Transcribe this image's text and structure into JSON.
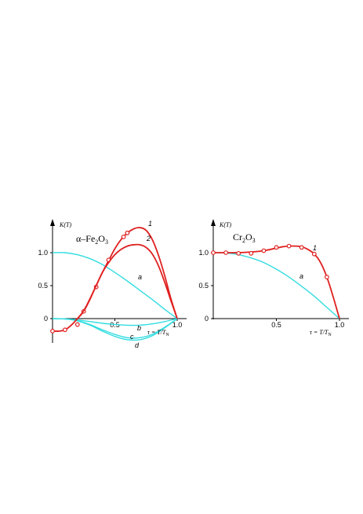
{
  "chart_data": [
    {
      "type": "line",
      "title_main": "α–Fe",
      "title_sub1": "2",
      "title_mid": "O",
      "title_sub2": "3",
      "ylabel": "K(T)",
      "xlabel_main": "τ = T/T",
      "xlabel_sub": "N",
      "xlim": [
        0,
        1.0
      ],
      "ylim": [
        -0.35,
        1.4
      ],
      "xticks": [
        {
          "value": 0.5,
          "label": "0.5"
        },
        {
          "value": 1.0,
          "label": "1.0"
        }
      ],
      "yticks": [
        {
          "value": 0,
          "label": "0"
        },
        {
          "value": 0.5,
          "label": "0.5"
        },
        {
          "value": 1.0,
          "label": "1.0"
        }
      ],
      "colors": {
        "experiment": "#e02020",
        "theory": "#33dde0"
      },
      "series": [
        {
          "name": "1",
          "color": "#e02020",
          "markers": true,
          "x": [
            0.0,
            0.05,
            0.1,
            0.15,
            0.2,
            0.25,
            0.3,
            0.35,
            0.4,
            0.45,
            0.5,
            0.55,
            0.6,
            0.65,
            0.7,
            0.75,
            0.8,
            0.85,
            0.9,
            0.95,
            1.0
          ],
          "y": [
            -0.19,
            -0.19,
            -0.17,
            -0.1,
            0.0,
            0.11,
            0.29,
            0.5,
            0.7,
            0.88,
            1.06,
            1.2,
            1.3,
            1.36,
            1.38,
            1.34,
            1.2,
            0.96,
            0.65,
            0.3,
            0.0
          ],
          "marker_x": [
            0.0,
            0.1,
            0.2,
            0.25,
            0.35,
            0.45,
            0.57,
            0.6
          ],
          "marker_y": [
            -0.19,
            -0.17,
            -0.09,
            0.11,
            0.48,
            0.89,
            1.24,
            1.3
          ]
        },
        {
          "name": "2",
          "color": "#e02020",
          "markers": false,
          "x": [
            0.2,
            0.25,
            0.3,
            0.35,
            0.4,
            0.45,
            0.5,
            0.55,
            0.6,
            0.65,
            0.7,
            0.75,
            0.8,
            0.85,
            0.9,
            0.95,
            1.0
          ],
          "y": [
            0.0,
            0.12,
            0.3,
            0.5,
            0.7,
            0.85,
            0.97,
            1.05,
            1.1,
            1.12,
            1.12,
            1.08,
            0.98,
            0.8,
            0.55,
            0.27,
            0.0
          ]
        },
        {
          "name": "a",
          "color": "#33dde0",
          "markers": false,
          "x": [
            0.0,
            0.1,
            0.2,
            0.3,
            0.4,
            0.5,
            0.6,
            0.7,
            0.8,
            0.9,
            0.95,
            1.0
          ],
          "y": [
            1.0,
            1.0,
            0.97,
            0.91,
            0.82,
            0.7,
            0.57,
            0.43,
            0.29,
            0.14,
            0.07,
            0.0
          ]
        },
        {
          "name": "b",
          "color": "#33dde0",
          "markers": false,
          "x": [
            0.0,
            0.1,
            0.2,
            0.3,
            0.4,
            0.5,
            0.6,
            0.7,
            0.8,
            0.9,
            1.0
          ],
          "y": [
            0.0,
            -0.005,
            -0.02,
            -0.045,
            -0.07,
            -0.09,
            -0.1,
            -0.1,
            -0.08,
            -0.045,
            0.0
          ]
        },
        {
          "name": "c",
          "color": "#33dde0",
          "markers": false,
          "x": [
            0.0,
            0.1,
            0.2,
            0.3,
            0.4,
            0.5,
            0.6,
            0.7,
            0.8,
            0.9,
            1.0
          ],
          "y": [
            0.0,
            -0.005,
            -0.03,
            -0.09,
            -0.17,
            -0.24,
            -0.29,
            -0.29,
            -0.24,
            -0.13,
            0.0
          ]
        },
        {
          "name": "d",
          "color": "#33dde0",
          "markers": false,
          "x": [
            0.0,
            0.1,
            0.2,
            0.3,
            0.4,
            0.5,
            0.6,
            0.7,
            0.8,
            0.9,
            1.0
          ],
          "y": [
            0.0,
            -0.005,
            -0.035,
            -0.1,
            -0.19,
            -0.27,
            -0.32,
            -0.32,
            -0.26,
            -0.14,
            0.0
          ]
        }
      ]
    },
    {
      "type": "line",
      "title_main": "Cr",
      "title_sub1": "2",
      "title_mid": "O",
      "title_sub2": "3",
      "ylabel": "K(T)",
      "xlabel_main": "τ = T/T",
      "xlabel_sub": "N",
      "xlim": [
        0,
        1.0
      ],
      "ylim": [
        -0.05,
        1.4
      ],
      "xticks": [
        {
          "value": 0.5,
          "label": "0.5"
        },
        {
          "value": 1.0,
          "label": "1.0"
        }
      ],
      "yticks": [
        {
          "value": 0,
          "label": "0"
        },
        {
          "value": 0.5,
          "label": "0.5"
        },
        {
          "value": 1.0,
          "label": "1.0"
        }
      ],
      "colors": {
        "experiment": "#e02020",
        "theory": "#33dde0"
      },
      "series": [
        {
          "name": "1",
          "color": "#e02020",
          "markers": true,
          "x": [
            0.0,
            0.1,
            0.2,
            0.3,
            0.4,
            0.5,
            0.55,
            0.6,
            0.65,
            0.7,
            0.75,
            0.8,
            0.85,
            0.9,
            0.95,
            1.0
          ],
          "y": [
            1.0,
            1.0,
            1.0,
            1.01,
            1.03,
            1.07,
            1.09,
            1.1,
            1.1,
            1.09,
            1.05,
            0.98,
            0.85,
            0.63,
            0.33,
            0.0
          ],
          "marker_x": [
            0.0,
            0.1,
            0.2,
            0.3,
            0.4,
            0.5,
            0.6,
            0.7,
            0.8,
            0.9
          ],
          "marker_y": [
            1.0,
            1.0,
            0.99,
            0.99,
            1.03,
            1.08,
            1.1,
            1.08,
            0.98,
            0.63
          ]
        },
        {
          "name": "a",
          "color": "#33dde0",
          "markers": false,
          "x": [
            0.0,
            0.1,
            0.2,
            0.3,
            0.4,
            0.5,
            0.6,
            0.7,
            0.8,
            0.9,
            1.0
          ],
          "y": [
            1.0,
            0.995,
            0.97,
            0.92,
            0.85,
            0.75,
            0.63,
            0.49,
            0.34,
            0.17,
            0.0
          ]
        }
      ]
    }
  ]
}
